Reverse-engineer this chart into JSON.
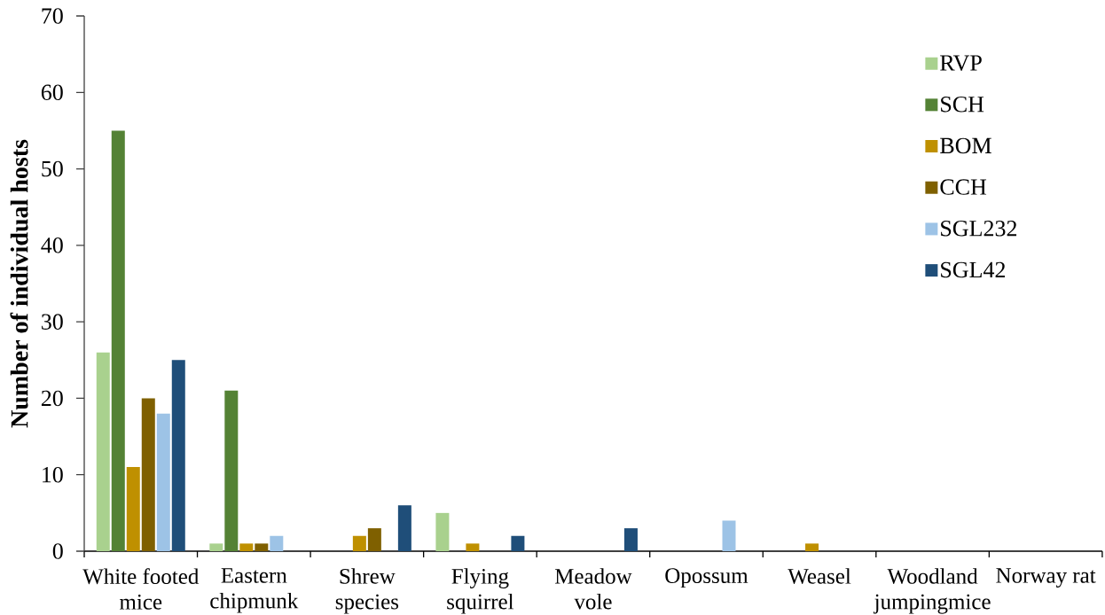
{
  "chart_data": {
    "type": "bar",
    "ylabel": "Number of individual hosts",
    "categories": [
      "White footed mice",
      "Eastern chipmunk",
      "Shrew species",
      "Flying squirrel",
      "Meadow vole",
      "Opossum",
      "Weasel",
      "Woodland jumpingmice",
      "Norway rat"
    ],
    "series": [
      {
        "name": "RVP",
        "color": "#a9d18e",
        "values": [
          26,
          1,
          0,
          5,
          0,
          0,
          0,
          0,
          0
        ]
      },
      {
        "name": "SCH",
        "color": "#548235",
        "values": [
          55,
          21,
          0,
          0,
          0,
          0,
          0,
          0,
          0
        ]
      },
      {
        "name": "BOM",
        "color": "#bf9000",
        "values": [
          11,
          1,
          2,
          1,
          0,
          0,
          1,
          0,
          0
        ]
      },
      {
        "name": "CCH",
        "color": "#7f6000",
        "values": [
          20,
          1,
          3,
          0,
          0,
          0,
          0,
          0,
          0
        ]
      },
      {
        "name": "SGL232",
        "color": "#9dc3e6",
        "values": [
          18,
          2,
          0,
          0,
          0,
          4,
          0,
          0,
          0
        ]
      },
      {
        "name": "SGL42",
        "color": "#1f4e79",
        "values": [
          25,
          0,
          6,
          2,
          3,
          0,
          0,
          0,
          0
        ]
      }
    ],
    "ylim": [
      0,
      70
    ],
    "yticks": [
      0,
      10,
      20,
      30,
      40,
      50,
      60,
      70
    ],
    "legend": "top right"
  }
}
